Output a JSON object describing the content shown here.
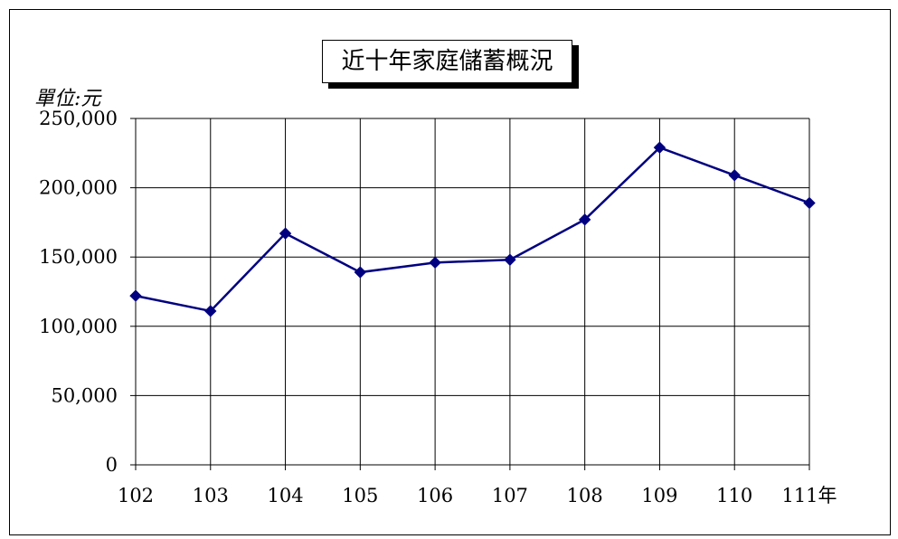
{
  "chart_data": {
    "type": "line",
    "title": "近十年家庭儲蓄概況",
    "unit_label": "單位:元",
    "categories": [
      "102",
      "103",
      "104",
      "105",
      "106",
      "107",
      "108",
      "109",
      "110",
      "111年"
    ],
    "series": [
      {
        "values": [
          122000,
          111000,
          167000,
          139000,
          146000,
          148000,
          177000,
          229000,
          209000,
          189000
        ]
      }
    ],
    "ylim": [
      0,
      250000
    ],
    "yticks": [
      "0",
      "50,000",
      "100,000",
      "150,000",
      "200,000",
      "250,000"
    ],
    "grid": true,
    "line_color": "#000080",
    "marker": "diamond"
  }
}
